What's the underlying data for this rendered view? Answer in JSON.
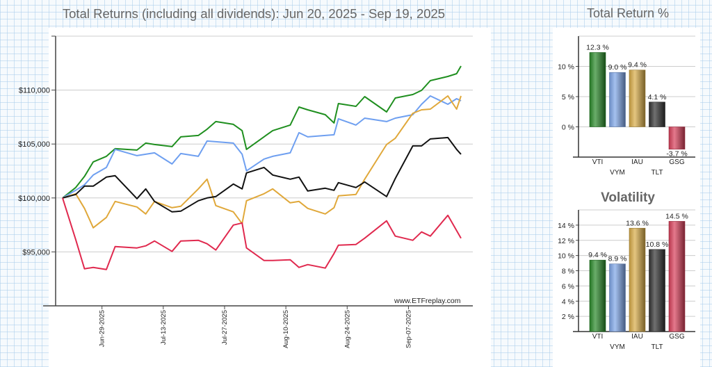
{
  "main_title": "Total Returns (including all dividends): Jun 20, 2025 - Sep 19, 2025",
  "watermark": "www.ETFreplay.com",
  "chart_data": [
    {
      "type": "line",
      "title": "Total Returns (including all dividends): Jun 20, 2025 - Sep 19, 2025",
      "ylim": [
        90000,
        115000
      ],
      "y_ticks": [
        95000,
        100000,
        105000,
        110000
      ],
      "y_tick_labels": [
        "$95,000",
        "$100,000",
        "$105,000",
        "$110,000"
      ],
      "x_range": [
        "2025-06-20",
        "2025-09-19"
      ],
      "x_ticks": [
        "2025-06-29",
        "2025-07-13",
        "2025-07-27",
        "2025-08-10",
        "2025-08-24",
        "2025-09-07"
      ],
      "x_tick_labels": [
        "Jun-29-2025",
        "Jul-13-2025",
        "Jul-27-2025",
        "Aug-10-2025",
        "Aug-24-2025",
        "Sep-07-2025"
      ],
      "grid": "horizontal",
      "x": [
        "2025-06-20",
        "2025-06-23",
        "2025-06-25",
        "2025-06-27",
        "2025-06-30",
        "2025-07-02",
        "2025-07-07",
        "2025-07-09",
        "2025-07-11",
        "2025-07-15",
        "2025-07-17",
        "2025-07-21",
        "2025-07-23",
        "2025-07-25",
        "2025-07-29",
        "2025-07-31",
        "2025-08-01",
        "2025-08-05",
        "2025-08-07",
        "2025-08-11",
        "2025-08-13",
        "2025-08-15",
        "2025-08-19",
        "2025-08-21",
        "2025-08-22",
        "2025-08-26",
        "2025-08-28",
        "2025-09-02",
        "2025-09-04",
        "2025-09-08",
        "2025-09-10",
        "2025-09-12",
        "2025-09-16",
        "2025-09-18",
        "2025-09-19"
      ],
      "series": [
        {
          "color": "#1f8f1f",
          "values": [
            100000,
            100965,
            101995,
            103346,
            103861,
            104569,
            104440,
            105084,
            104955,
            104762,
            105663,
            105792,
            106371,
            107079,
            106821,
            106242,
            104505,
            105663,
            106242,
            106757,
            108430,
            108172,
            107722,
            106950,
            108752,
            108494,
            109395,
            107979,
            109266,
            109588,
            109974,
            110875,
            111261,
            111518,
            112227
          ]
        },
        {
          "color": "#6e9ff0",
          "values": [
            100000,
            100708,
            101223,
            102124,
            102831,
            104505,
            103925,
            104054,
            104183,
            103153,
            104118,
            103861,
            105277,
            105212,
            105084,
            104054,
            102510,
            103604,
            103861,
            104183,
            106049,
            105663,
            105792,
            105856,
            107336,
            106757,
            107400,
            107079,
            107400,
            107722,
            108687,
            109459,
            108687,
            109202,
            109009
          ]
        },
        {
          "color": "#e0a83a",
          "values": [
            100000,
            100386,
            99035,
            97233,
            98198,
            99678,
            99163,
            98520,
            99678,
            99099,
            99228,
            100837,
            101737,
            99292,
            98713,
            97619,
            99743,
            100386,
            100837,
            99550,
            99678,
            99035,
            98520,
            99099,
            100193,
            100322,
            101737,
            104955,
            105534,
            107851,
            108172,
            108237,
            109459,
            108237,
            109459
          ]
        },
        {
          "color": "#111111",
          "values": [
            100000,
            100322,
            101094,
            101094,
            101931,
            102059,
            99936,
            100837,
            99678,
            98713,
            98777,
            99743,
            100000,
            100129,
            101287,
            100837,
            102317,
            102831,
            102124,
            101737,
            101931,
            100644,
            100901,
            100708,
            101416,
            100965,
            101480,
            100129,
            101802,
            104826,
            104826,
            105470,
            105598,
            104505,
            104054
          ]
        },
        {
          "color": "#e0294e",
          "values": [
            100000,
            96139,
            93436,
            93565,
            93372,
            95496,
            95367,
            95560,
            96010,
            95045,
            96010,
            96075,
            95753,
            95174,
            97490,
            97683,
            95367,
            94209,
            94209,
            94273,
            93565,
            93822,
            93500,
            94852,
            95624,
            95689,
            96268,
            97877,
            96461,
            96075,
            96847,
            96461,
            98391,
            96976,
            96268
          ]
        }
      ]
    },
    {
      "type": "bar",
      "title": "Total Return %",
      "categories": [
        "VTI",
        "VYM",
        "IAU",
        "TLT",
        "GSG"
      ],
      "values": [
        12.3,
        9.0,
        9.4,
        4.1,
        -3.7
      ],
      "data_labels": [
        "12.3 %",
        "9.0 %",
        "9.4 %",
        "4.1 %",
        "-3.7 %"
      ],
      "colors": [
        "#2a8a2a",
        "#7fa6e8",
        "#d8ac48",
        "#333333",
        "#d8405a"
      ],
      "ylim": [
        -5,
        15
      ],
      "y_ticks": [
        0,
        5,
        10
      ],
      "y_tick_labels": [
        "0 %",
        "5 %",
        "10 %"
      ],
      "grid": "horizontal"
    },
    {
      "type": "bar",
      "title": "Volatility",
      "categories": [
        "VTI",
        "VYM",
        "IAU",
        "TLT",
        "GSG"
      ],
      "values": [
        9.4,
        8.9,
        13.6,
        10.8,
        14.5
      ],
      "data_labels": [
        "9.4 %",
        "8.9 %",
        "13.6 %",
        "10.8 %",
        "14.5 %"
      ],
      "colors": [
        "#2a8a2a",
        "#7fa6e8",
        "#d8ac48",
        "#333333",
        "#d8405a"
      ],
      "ylim": [
        0,
        16
      ],
      "y_ticks": [
        2,
        4,
        6,
        8,
        10,
        12,
        14
      ],
      "y_tick_labels": [
        "2 %",
        "4 %",
        "6 %",
        "8 %",
        "10 %",
        "12 %",
        "14 %"
      ],
      "grid": "horizontal"
    }
  ]
}
